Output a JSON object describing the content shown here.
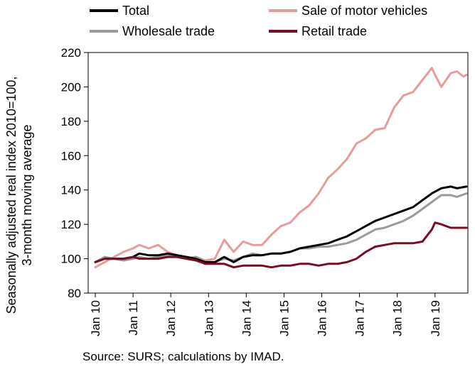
{
  "chart_data": {
    "type": "line",
    "ylabel_line1": "Seasonally adjusted real index 2010=100,",
    "ylabel_line2": "3-month moving average",
    "xlabel": "",
    "ylim": [
      80,
      220
    ],
    "yticks": [
      80,
      100,
      120,
      140,
      160,
      180,
      200,
      220
    ],
    "x_tick_labels": [
      "Jan 10",
      "Jan 11",
      "Jan 12",
      "Jan 13",
      "Jan 14",
      "Jan 15",
      "Jan 16",
      "Jan 17",
      "Jan 18",
      "Jan 19"
    ],
    "x_tick_dates": [
      "2010-01",
      "2011-01",
      "2012-01",
      "2013-01",
      "2014-01",
      "2015-01",
      "2016-01",
      "2017-01",
      "2018-01",
      "2019-01"
    ],
    "xlim": [
      "2010-01",
      "2019-11"
    ],
    "grid": false,
    "legend_placement": "top",
    "source": "Source: SURS; calculations by IMAD.",
    "series": [
      {
        "name": "Total",
        "color": "#000000",
        "points": [
          [
            "2010-01",
            98
          ],
          [
            "2010-04",
            100
          ],
          [
            "2010-07",
            100
          ],
          [
            "2010-10",
            100
          ],
          [
            "2011-01",
            101
          ],
          [
            "2011-03",
            103
          ],
          [
            "2011-06",
            102
          ],
          [
            "2011-09",
            102
          ],
          [
            "2011-12",
            103
          ],
          [
            "2012-03",
            102
          ],
          [
            "2012-06",
            101
          ],
          [
            "2012-09",
            100
          ],
          [
            "2012-12",
            98
          ],
          [
            "2013-03",
            98
          ],
          [
            "2013-06",
            101
          ],
          [
            "2013-09",
            98
          ],
          [
            "2013-12",
            101
          ],
          [
            "2014-03",
            102
          ],
          [
            "2014-06",
            102
          ],
          [
            "2014-09",
            103
          ],
          [
            "2014-12",
            103
          ],
          [
            "2015-03",
            104
          ],
          [
            "2015-06",
            106
          ],
          [
            "2015-09",
            107
          ],
          [
            "2015-12",
            108
          ],
          [
            "2016-03",
            109
          ],
          [
            "2016-06",
            111
          ],
          [
            "2016-09",
            113
          ],
          [
            "2016-12",
            116
          ],
          [
            "2017-03",
            119
          ],
          [
            "2017-06",
            122
          ],
          [
            "2017-09",
            124
          ],
          [
            "2017-12",
            126
          ],
          [
            "2018-03",
            128
          ],
          [
            "2018-06",
            130
          ],
          [
            "2018-09",
            134
          ],
          [
            "2018-12",
            138
          ],
          [
            "2019-03",
            141
          ],
          [
            "2019-06",
            142
          ],
          [
            "2019-08",
            141
          ],
          [
            "2019-11",
            142
          ]
        ]
      },
      {
        "name": "Sale of motor vehicles",
        "color": "#e89a9c",
        "points": [
          [
            "2010-01",
            95
          ],
          [
            "2010-04",
            98
          ],
          [
            "2010-07",
            101
          ],
          [
            "2010-10",
            104
          ],
          [
            "2011-01",
            106
          ],
          [
            "2011-03",
            108
          ],
          [
            "2011-06",
            106
          ],
          [
            "2011-09",
            108
          ],
          [
            "2011-12",
            104
          ],
          [
            "2012-03",
            102
          ],
          [
            "2012-06",
            100
          ],
          [
            "2012-09",
            101
          ],
          [
            "2012-12",
            99
          ],
          [
            "2013-03",
            100
          ],
          [
            "2013-06",
            111
          ],
          [
            "2013-09",
            104
          ],
          [
            "2013-12",
            110
          ],
          [
            "2014-03",
            108
          ],
          [
            "2014-06",
            108
          ],
          [
            "2014-09",
            114
          ],
          [
            "2014-12",
            119
          ],
          [
            "2015-03",
            121
          ],
          [
            "2015-06",
            127
          ],
          [
            "2015-09",
            131
          ],
          [
            "2015-12",
            138
          ],
          [
            "2016-03",
            147
          ],
          [
            "2016-06",
            152
          ],
          [
            "2016-09",
            158
          ],
          [
            "2016-12",
            167
          ],
          [
            "2017-03",
            170
          ],
          [
            "2017-06",
            175
          ],
          [
            "2017-09",
            176
          ],
          [
            "2017-12",
            188
          ],
          [
            "2018-03",
            195
          ],
          [
            "2018-06",
            197
          ],
          [
            "2018-09",
            204
          ],
          [
            "2018-12",
            211
          ],
          [
            "2019-01",
            207
          ],
          [
            "2019-03",
            200
          ],
          [
            "2019-06",
            208
          ],
          [
            "2019-08",
            209
          ],
          [
            "2019-10",
            206
          ],
          [
            "2019-11",
            207
          ]
        ]
      },
      {
        "name": "Wholesale trade",
        "color": "#9a9a9a",
        "points": [
          [
            "2010-01",
            98
          ],
          [
            "2010-04",
            101
          ],
          [
            "2010-07",
            100
          ],
          [
            "2010-10",
            99
          ],
          [
            "2011-01",
            100
          ],
          [
            "2011-03",
            101
          ],
          [
            "2011-06",
            100
          ],
          [
            "2011-09",
            101
          ],
          [
            "2011-12",
            102
          ],
          [
            "2012-03",
            101
          ],
          [
            "2012-06",
            100
          ],
          [
            "2012-09",
            101
          ],
          [
            "2012-12",
            98
          ],
          [
            "2013-03",
            98
          ],
          [
            "2013-06",
            100
          ],
          [
            "2013-09",
            99
          ],
          [
            "2013-12",
            101
          ],
          [
            "2014-03",
            103
          ],
          [
            "2014-06",
            102
          ],
          [
            "2014-09",
            103
          ],
          [
            "2014-12",
            103
          ],
          [
            "2015-03",
            104
          ],
          [
            "2015-06",
            106
          ],
          [
            "2015-09",
            106
          ],
          [
            "2015-12",
            107
          ],
          [
            "2016-03",
            107
          ],
          [
            "2016-06",
            108
          ],
          [
            "2016-09",
            109
          ],
          [
            "2016-12",
            111
          ],
          [
            "2017-03",
            114
          ],
          [
            "2017-06",
            117
          ],
          [
            "2017-09",
            118
          ],
          [
            "2017-12",
            120
          ],
          [
            "2018-03",
            122
          ],
          [
            "2018-06",
            125
          ],
          [
            "2018-09",
            129
          ],
          [
            "2018-12",
            133
          ],
          [
            "2019-03",
            137
          ],
          [
            "2019-06",
            137
          ],
          [
            "2019-08",
            136
          ],
          [
            "2019-11",
            138
          ]
        ]
      },
      {
        "name": "Retail trade",
        "color": "#7d0a22",
        "points": [
          [
            "2010-01",
            98
          ],
          [
            "2010-04",
            100
          ],
          [
            "2010-07",
            100
          ],
          [
            "2010-10",
            100
          ],
          [
            "2011-01",
            101
          ],
          [
            "2011-03",
            100
          ],
          [
            "2011-06",
            100
          ],
          [
            "2011-09",
            100
          ],
          [
            "2011-12",
            101
          ],
          [
            "2012-03",
            101
          ],
          [
            "2012-06",
            100
          ],
          [
            "2012-09",
            99
          ],
          [
            "2012-12",
            97
          ],
          [
            "2013-03",
            97
          ],
          [
            "2013-06",
            97
          ],
          [
            "2013-09",
            95
          ],
          [
            "2013-12",
            96
          ],
          [
            "2014-03",
            96
          ],
          [
            "2014-06",
            96
          ],
          [
            "2014-09",
            95
          ],
          [
            "2014-12",
            96
          ],
          [
            "2015-03",
            96
          ],
          [
            "2015-06",
            97
          ],
          [
            "2015-09",
            97
          ],
          [
            "2015-12",
            96
          ],
          [
            "2016-03",
            97
          ],
          [
            "2016-06",
            97
          ],
          [
            "2016-09",
            98
          ],
          [
            "2016-12",
            100
          ],
          [
            "2017-03",
            104
          ],
          [
            "2017-06",
            107
          ],
          [
            "2017-09",
            108
          ],
          [
            "2017-12",
            109
          ],
          [
            "2018-03",
            109
          ],
          [
            "2018-06",
            109
          ],
          [
            "2018-09",
            110
          ],
          [
            "2018-12",
            117
          ],
          [
            "2019-01",
            121
          ],
          [
            "2019-03",
            120
          ],
          [
            "2019-06",
            118
          ],
          [
            "2019-08",
            118
          ],
          [
            "2019-11",
            118
          ]
        ]
      }
    ]
  }
}
